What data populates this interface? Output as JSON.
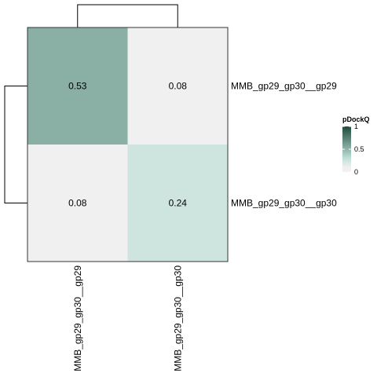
{
  "chart_data": {
    "type": "heatmap",
    "rows": [
      "MMB_gp29_gp30__gp29",
      "MMB_gp29_gp30__gp30"
    ],
    "columns": [
      "MMB_gp29_gp30__gp29",
      "MMB_gp29_gp30__gp30"
    ],
    "values": [
      [
        0.53,
        0.08
      ],
      [
        0.08,
        0.24
      ]
    ],
    "cell_labels": [
      [
        "0.53",
        "0.08"
      ],
      [
        "0.08",
        "0.24"
      ]
    ],
    "color_scale": {
      "min": 0,
      "max": 1,
      "low_color": "#f0f0f0",
      "mid_color": "#bfe0d8",
      "high_color": "#1d4a3a"
    },
    "legend": {
      "title": "pDockQ",
      "ticks": [
        {
          "value": 0,
          "label": "0"
        },
        {
          "value": 0.5,
          "label": "0.5"
        },
        {
          "value": 1,
          "label": "1"
        }
      ],
      "placement": "right"
    },
    "row_dendrogram": true,
    "column_dendrogram": true,
    "grid": false
  }
}
